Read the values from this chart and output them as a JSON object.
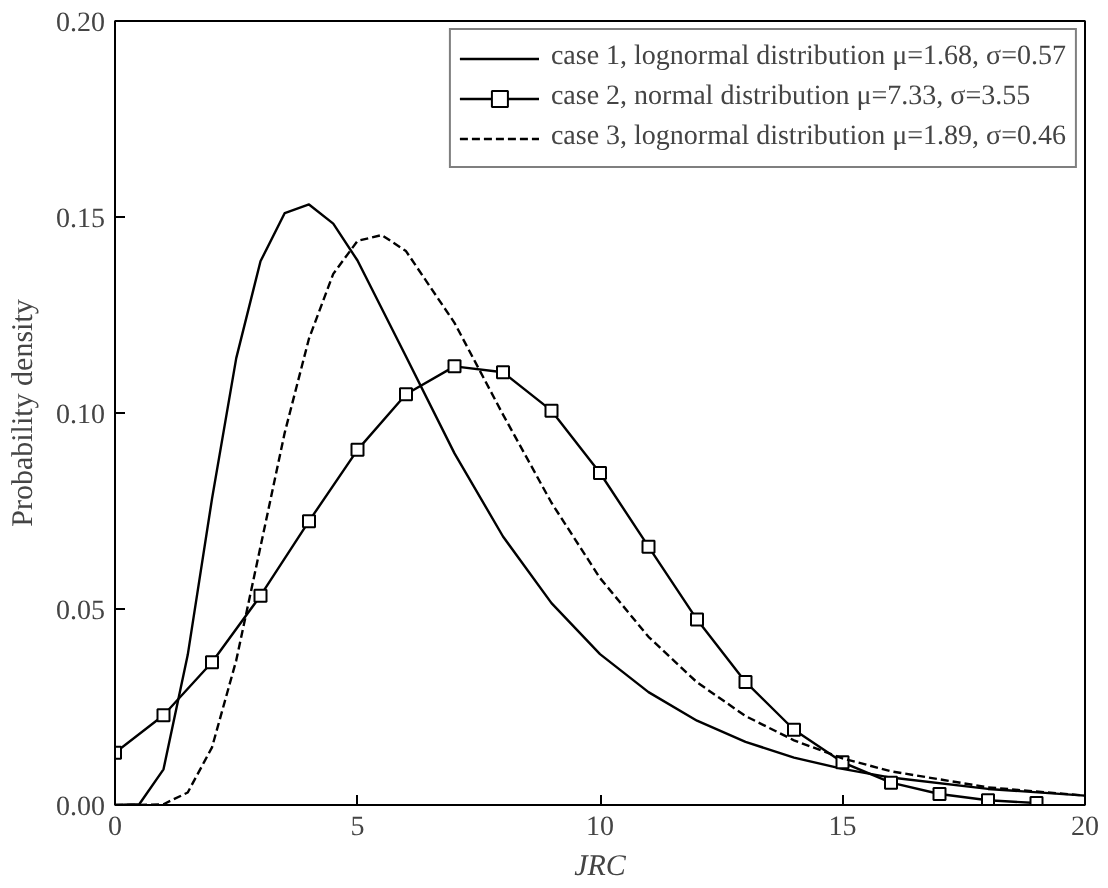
{
  "chart_data": {
    "type": "line",
    "xlabel": "JRC",
    "ylabel": "Probability density",
    "xlim": [
      0,
      20
    ],
    "ylim": [
      0,
      0.2
    ],
    "xticks": [
      0,
      5,
      10,
      15,
      20
    ],
    "yticks": [
      {
        "value": 0,
        "label": "0.00"
      },
      {
        "value": 0.05,
        "label": "0.05"
      },
      {
        "value": 0.1,
        "label": "0.10"
      },
      {
        "value": 0.15,
        "label": "0.15"
      },
      {
        "value": 0.2,
        "label": "0.20"
      }
    ],
    "grid": false,
    "legend": "top right",
    "series": [
      {
        "name": "case 1, lognormal distribution μ=1.68, σ=0.57",
        "color": "#000000",
        "line_style": "solid",
        "marker": "none",
        "x": [
          0,
          0.5,
          1,
          1.5,
          2,
          2.5,
          3,
          3.5,
          4,
          4.5,
          5,
          6,
          7,
          8,
          9,
          10,
          11,
          12,
          13,
          14,
          15,
          16,
          18,
          20
        ],
        "values": [
          0,
          0.0002,
          0.0091,
          0.0383,
          0.0781,
          0.114,
          0.1387,
          0.151,
          0.1532,
          0.1483,
          0.1389,
          0.1144,
          0.0897,
          0.0685,
          0.0515,
          0.0385,
          0.0288,
          0.0215,
          0.0161,
          0.0121,
          0.0092,
          0.007,
          0.0041,
          0.0024
        ]
      },
      {
        "name": "case 2, normal distribution μ=7.33, σ=3.55",
        "color": "#000000",
        "line_style": "solid",
        "marker": "square",
        "x": [
          0,
          1,
          2,
          3,
          4,
          5,
          6,
          7,
          8,
          9,
          10,
          11,
          12,
          13,
          14,
          15,
          16,
          17,
          18,
          19
        ],
        "values": [
          0.0133,
          0.0229,
          0.0364,
          0.0534,
          0.0724,
          0.0906,
          0.1048,
          0.1119,
          0.1104,
          0.1006,
          0.0847,
          0.0659,
          0.0473,
          0.0314,
          0.0192,
          0.0109,
          0.0057,
          0.0028,
          0.0012,
          0.0005
        ]
      },
      {
        "name": "case 3, lognormal distribution μ=1.89, σ=0.46",
        "color": "#000000",
        "line_style": "dashed",
        "marker": "none",
        "x": [
          0,
          0.5,
          1,
          1.5,
          2,
          2.5,
          3,
          3.5,
          4,
          4.5,
          5,
          5.5,
          6,
          7,
          8,
          9,
          10,
          11,
          12,
          13,
          14,
          15,
          16,
          18,
          20
        ],
        "values": [
          0,
          0,
          0.0002,
          0.0032,
          0.0147,
          0.0369,
          0.0659,
          0.095,
          0.119,
          0.1355,
          0.1439,
          0.1454,
          0.1413,
          0.123,
          0.0996,
          0.0771,
          0.0579,
          0.0429,
          0.0313,
          0.0227,
          0.0165,
          0.0119,
          0.0086,
          0.0045,
          0.0024
        ]
      }
    ]
  }
}
